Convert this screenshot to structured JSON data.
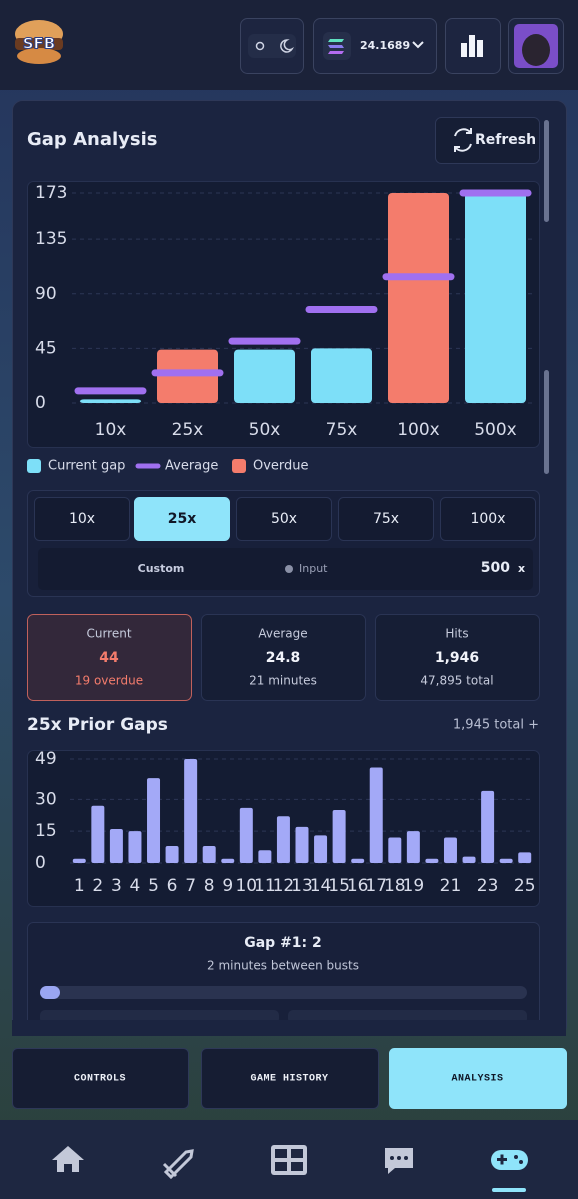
{
  "header": {
    "logo": "SFB",
    "balance": "24.1689"
  },
  "panel": {
    "title": "Gap Analysis",
    "refresh": "Refresh"
  },
  "chart_data": [
    {
      "type": "bar",
      "categories": [
        "10x",
        "25x",
        "50x",
        "75x",
        "100x",
        "500x"
      ],
      "series": [
        {
          "name": "Current gap",
          "type": "bar",
          "color": "#7ddff8",
          "values": [
            3,
            null,
            44,
            45,
            null,
            173
          ]
        },
        {
          "name": "Average",
          "type": "marker",
          "color": "#a070f0",
          "values": [
            10,
            24.8,
            51,
            77,
            104,
            173
          ]
        },
        {
          "name": "Overdue",
          "type": "bar",
          "color": "#f47c6c",
          "values": [
            null,
            44,
            null,
            null,
            173,
            null
          ]
        }
      ],
      "ylim": [
        0,
        173
      ],
      "yticks": [
        0,
        45,
        90,
        135,
        173
      ],
      "grid": true
    },
    {
      "type": "bar",
      "categories": [
        "1",
        "2",
        "3",
        "4",
        "5",
        "6",
        "7",
        "8",
        "9",
        "10",
        "11",
        "12",
        "13",
        "14",
        "15",
        "16",
        "17",
        "18",
        "19",
        null,
        "21",
        null,
        "23",
        null,
        "25"
      ],
      "values": [
        2,
        27,
        16,
        15,
        40,
        8,
        49,
        8,
        2,
        26,
        6,
        22,
        17,
        13,
        25,
        2,
        45,
        12,
        15,
        2,
        12,
        3,
        34,
        2,
        5
      ],
      "color": "#a3a9f7",
      "ylim": [
        0,
        49
      ],
      "yticks": [
        0,
        15,
        30,
        49
      ],
      "grid": true
    }
  ],
  "multipliers": {
    "tabs": [
      "10x",
      "25x",
      "50x",
      "75x",
      "100x"
    ],
    "active": 1,
    "custom": "Custom",
    "input": "Input",
    "value": "500",
    "unit": "x"
  },
  "stats": [
    {
      "label": "Current",
      "value": "44",
      "sub": "19 overdue"
    },
    {
      "label": "Average",
      "value": "24.8",
      "sub": "21 minutes"
    },
    {
      "label": "Hits",
      "value": "1,946",
      "sub": "47,895 total"
    }
  ],
  "prior_gaps": {
    "title": "25x Prior Gaps",
    "total": "1,945 total +"
  },
  "gap_detail": {
    "title": "Gap #1: 2",
    "subtitle": "2 minutes between busts"
  },
  "tabs": [
    "CONTROLS",
    "GAME HISTORY",
    "ANALYSIS"
  ],
  "active_tab": 2
}
